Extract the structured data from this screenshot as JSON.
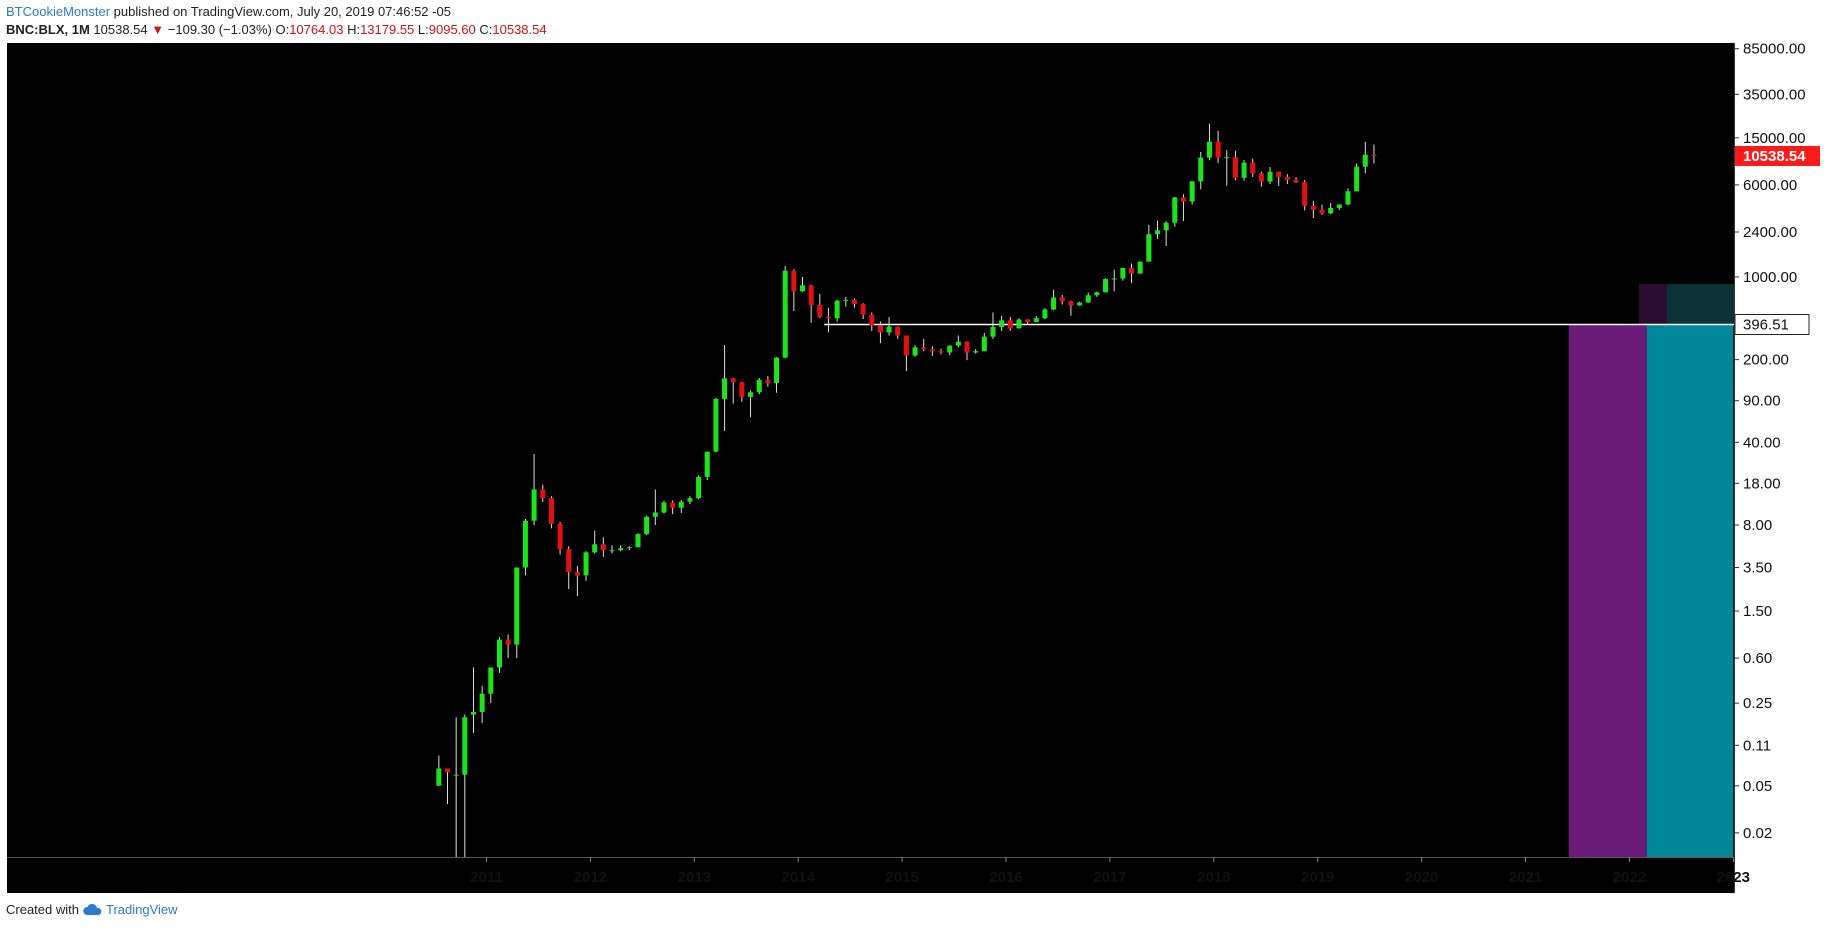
{
  "header": {
    "author": "BTCookieMonster",
    "published_text": "published on TradingView.com, July 20, 2019 07:46:52 -05"
  },
  "ohlc": {
    "symbol": "BNC:BLX, 1M",
    "last": "10538.54",
    "arrow": "▼",
    "change": "−109.30 (−1.03%)",
    "o_label": "O:",
    "o": "10764.03",
    "h_label": "H:",
    "h": "13179.55",
    "l_label": "L:",
    "l": "9095.60",
    "c_label": "C:",
    "c": "10538.54"
  },
  "footer": {
    "created_with": "Created with",
    "brand": "TradingView",
    "brand_icon": "tradingview-cloud-icon"
  },
  "colors": {
    "background": "#000000",
    "up": "#19e619",
    "down": "#e60f0f",
    "wick": "#dddddd",
    "purple_zone": "#6a1b78",
    "teal_zone": "#00889a",
    "last_price_badge": "#ff1a1a",
    "level_line": "#ffffff"
  },
  "chart_data": {
    "type": "candlestick",
    "scale": "log",
    "interval": "1M",
    "ylim": [
      0.0125,
      95000
    ],
    "y_ticks": [
      "85000.00",
      "35000.00",
      "15000.00",
      "6000.00",
      "2400.00",
      "1000.00",
      "200.00",
      "90.00",
      "40.00",
      "18.00",
      "8.00",
      "3.50",
      "1.50",
      "0.60",
      "0.25",
      "0.11",
      "0.05",
      "0.02"
    ],
    "x_ticks": [
      "2011",
      "2012",
      "2013",
      "2014",
      "2015",
      "2016",
      "2017",
      "2018",
      "2019",
      "2020",
      "2021",
      "2022",
      "2023"
    ],
    "last_price_label": "10538.54",
    "last_price": 10538.54,
    "level_label": "396.51",
    "level": 396.51,
    "level_start": "2014-04",
    "zones": [
      {
        "color": "purple",
        "start": "2021-06",
        "end": "2022-03"
      },
      {
        "color": "teal",
        "start": "2022-03",
        "end": "2023-01"
      }
    ],
    "candles": [
      [
        "2010-07",
        0.05,
        0.09,
        0.05,
        0.07
      ],
      [
        "2010-08",
        0.07,
        0.07,
        0.035,
        0.065
      ],
      [
        "2010-09",
        0.062,
        0.19,
        0.01,
        0.062
      ],
      [
        "2010-10",
        0.062,
        0.2,
        0.012,
        0.19
      ],
      [
        "2010-11",
        0.2,
        0.5,
        0.14,
        0.21
      ],
      [
        "2010-12",
        0.21,
        0.35,
        0.17,
        0.3
      ],
      [
        "2011-01",
        0.3,
        0.5,
        0.25,
        0.5
      ],
      [
        "2011-02",
        0.5,
        0.9,
        0.45,
        0.86
      ],
      [
        "2011-03",
        0.86,
        0.95,
        0.6,
        0.78
      ],
      [
        "2011-04",
        0.78,
        3.5,
        0.6,
        3.5
      ],
      [
        "2011-05",
        3.5,
        9,
        3,
        8.7
      ],
      [
        "2011-06",
        8.7,
        31.9,
        8,
        16
      ],
      [
        "2011-07",
        16,
        17.5,
        12.5,
        13.5
      ],
      [
        "2011-08",
        13.5,
        14,
        7.5,
        8.2
      ],
      [
        "2011-09",
        8.2,
        8.5,
        4.5,
        5
      ],
      [
        "2011-10",
        5,
        5.3,
        2.3,
        3.2
      ],
      [
        "2011-11",
        3.2,
        3.6,
        2,
        3
      ],
      [
        "2011-12",
        3,
        4.8,
        2.7,
        4.7
      ],
      [
        "2012-01",
        4.7,
        7.2,
        4.6,
        5.5
      ],
      [
        "2012-02",
        5.5,
        6.3,
        4.3,
        4.9
      ],
      [
        "2012-03",
        4.9,
        5.4,
        4.6,
        4.9
      ],
      [
        "2012-04",
        4.9,
        5.4,
        4.8,
        5.1
      ],
      [
        "2012-05",
        5.1,
        5.3,
        4.9,
        5.2
      ],
      [
        "2012-06",
        5.2,
        6.8,
        5.2,
        6.7
      ],
      [
        "2012-07",
        6.7,
        9.6,
        6.6,
        9.4
      ],
      [
        "2012-08",
        9.4,
        16,
        8,
        10.2
      ],
      [
        "2012-09",
        10.2,
        12.8,
        10,
        12.4
      ],
      [
        "2012-10",
        12.4,
        12.9,
        9.9,
        11.2
      ],
      [
        "2012-11",
        11.2,
        13,
        10.1,
        12.6
      ],
      [
        "2012-12",
        12.6,
        14,
        12,
        13.5
      ],
      [
        "2013-01",
        13.5,
        21,
        13.2,
        20.4
      ],
      [
        "2013-02",
        20.4,
        33,
        19.2,
        33.4
      ],
      [
        "2013-03",
        33.4,
        95,
        33,
        93
      ],
      [
        "2013-04",
        93,
        266,
        50,
        139
      ],
      [
        "2013-05",
        139,
        140,
        85,
        129
      ],
      [
        "2013-06",
        129,
        130,
        88,
        97
      ],
      [
        "2013-07",
        97,
        110,
        65,
        106
      ],
      [
        "2013-08",
        106,
        140,
        102,
        135
      ],
      [
        "2013-09",
        135,
        145,
        118,
        127
      ],
      [
        "2013-10",
        127,
        210,
        105,
        208
      ],
      [
        "2013-11",
        208,
        1242,
        205,
        1129
      ],
      [
        "2013-12",
        1129,
        1160,
        515,
        757
      ],
      [
        "2014-01",
        757,
        1000,
        750,
        850
      ],
      [
        "2014-02",
        850,
        860,
        410,
        580
      ],
      [
        "2014-03",
        580,
        720,
        450,
        460
      ],
      [
        "2014-04",
        460,
        550,
        340,
        448
      ],
      [
        "2014-05",
        448,
        640,
        420,
        630
      ],
      [
        "2014-06",
        630,
        680,
        560,
        640
      ],
      [
        "2014-07",
        640,
        660,
        550,
        590
      ],
      [
        "2014-08",
        590,
        600,
        440,
        480
      ],
      [
        "2014-09",
        480,
        500,
        350,
        390
      ],
      [
        "2014-10",
        390,
        420,
        275,
        340
      ],
      [
        "2014-11",
        340,
        458,
        320,
        380
      ],
      [
        "2014-12",
        380,
        382,
        300,
        320
      ],
      [
        "2015-01",
        320,
        320,
        160,
        217
      ],
      [
        "2015-02",
        217,
        265,
        212,
        254
      ],
      [
        "2015-03",
        254,
        300,
        236,
        244
      ],
      [
        "2015-04",
        244,
        260,
        215,
        236
      ],
      [
        "2015-05",
        236,
        248,
        222,
        230
      ],
      [
        "2015-06",
        230,
        265,
        218,
        263
      ],
      [
        "2015-07",
        263,
        320,
        253,
        284
      ],
      [
        "2015-08",
        284,
        285,
        198,
        230
      ],
      [
        "2015-09",
        230,
        246,
        225,
        236
      ],
      [
        "2015-10",
        236,
        336,
        236,
        313
      ],
      [
        "2015-11",
        313,
        502,
        300,
        377
      ],
      [
        "2015-12",
        377,
        470,
        349,
        430
      ],
      [
        "2016-01",
        430,
        460,
        350,
        368
      ],
      [
        "2016-02",
        368,
        447,
        365,
        437
      ],
      [
        "2016-03",
        437,
        440,
        395,
        416
      ],
      [
        "2016-04",
        416,
        468,
        414,
        448
      ],
      [
        "2016-05",
        448,
        545,
        440,
        531
      ],
      [
        "2016-06",
        531,
        778,
        523,
        671
      ],
      [
        "2016-07",
        671,
        705,
        585,
        624
      ],
      [
        "2016-08",
        624,
        630,
        470,
        575
      ],
      [
        "2016-09",
        575,
        616,
        571,
        608
      ],
      [
        "2016-10",
        608,
        738,
        604,
        700
      ],
      [
        "2016-11",
        700,
        753,
        680,
        742
      ],
      [
        "2016-12",
        742,
        975,
        740,
        960
      ],
      [
        "2017-01",
        960,
        1153,
        755,
        970
      ],
      [
        "2017-02",
        970,
        1200,
        930,
        1190
      ],
      [
        "2017-03",
        1190,
        1300,
        885,
        1071
      ],
      [
        "2017-04",
        1071,
        1350,
        1062,
        1348
      ],
      [
        "2017-05",
        1348,
        2760,
        1348,
        2300
      ],
      [
        "2017-06",
        2300,
        3000,
        2100,
        2480
      ],
      [
        "2017-07",
        2480,
        2950,
        1830,
        2875
      ],
      [
        "2017-08",
        2875,
        4750,
        2660,
        4703
      ],
      [
        "2017-09",
        4703,
        5000,
        2970,
        4340
      ],
      [
        "2017-10",
        4340,
        6450,
        4100,
        6440
      ],
      [
        "2017-11",
        6440,
        11400,
        5500,
        10200
      ],
      [
        "2017-12",
        10200,
        19800,
        9700,
        13900
      ],
      [
        "2018-01",
        13900,
        17200,
        9200,
        10200
      ],
      [
        "2018-02",
        10200,
        11800,
        5900,
        10300
      ],
      [
        "2018-03",
        10300,
        11700,
        6600,
        6900
      ],
      [
        "2018-04",
        6900,
        9750,
        6500,
        9250
      ],
      [
        "2018-05",
        9250,
        10000,
        7000,
        7500
      ],
      [
        "2018-06",
        7500,
        7800,
        5800,
        6400
      ],
      [
        "2018-07",
        6400,
        8500,
        6100,
        7750
      ],
      [
        "2018-08",
        7750,
        7780,
        5880,
        7000
      ],
      [
        "2018-09",
        7000,
        7400,
        6100,
        6620
      ],
      [
        "2018-10",
        6620,
        7000,
        6220,
        6320
      ],
      [
        "2018-11",
        6320,
        6600,
        3660,
        4000
      ],
      [
        "2018-12",
        4000,
        4400,
        3150,
        3700
      ],
      [
        "2019-01",
        3700,
        4100,
        3350,
        3450
      ],
      [
        "2019-02",
        3450,
        4200,
        3400,
        3830
      ],
      [
        "2019-03",
        3830,
        4120,
        3690,
        4100
      ],
      [
        "2019-04",
        4100,
        5600,
        4050,
        5300
      ],
      [
        "2019-05",
        5300,
        9100,
        5300,
        8550
      ],
      [
        "2019-06",
        8550,
        13900,
        7520,
        10800
      ],
      [
        "2019-07",
        10764.03,
        13179.55,
        9095.6,
        10538.54
      ]
    ]
  }
}
